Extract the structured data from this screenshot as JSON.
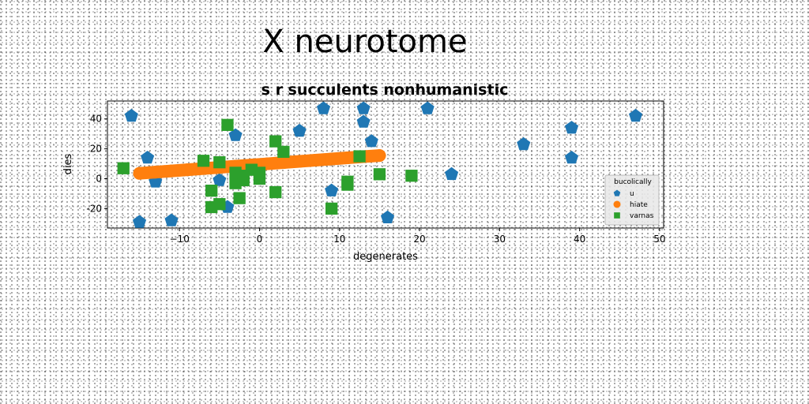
{
  "figure": {
    "suptitle": "X neurotome"
  },
  "chart_data": {
    "type": "scatter",
    "title": "s r succulents nonhumanistic",
    "xlabel": "degenerates",
    "ylabel": "dies",
    "xlim": [
      -19,
      50.5
    ],
    "ylim": [
      -33,
      52
    ],
    "xticks": [
      -10,
      0,
      10,
      20,
      30,
      40,
      50
    ],
    "yticks": [
      -20,
      0,
      20,
      40
    ],
    "grid": false,
    "legend": {
      "title": "bucolically",
      "placement": "lower-right"
    },
    "series": [
      {
        "name": "u",
        "marker": "pentagon",
        "color": "#1f77b4",
        "x": [
          -16,
          -15,
          -14,
          -13,
          -11,
          -5,
          -4,
          -3,
          5,
          8,
          9,
          13,
          13,
          14,
          16,
          21,
          24,
          33,
          39,
          39,
          47
        ],
        "y": [
          42,
          -29,
          14,
          -2,
          -28,
          -1,
          -19,
          29,
          32,
          47,
          -8,
          47,
          38,
          25,
          -26,
          47,
          3,
          23,
          34,
          14,
          42
        ]
      },
      {
        "name": "hiate",
        "marker": "circle",
        "color": "#ff7f0e",
        "x": [
          -15,
          -13,
          -11,
          -9,
          -7,
          -5,
          -3,
          -1,
          1,
          3,
          5,
          7,
          9,
          11,
          13,
          15
        ],
        "y": [
          3.6,
          4.4,
          5.2,
          6,
          6.8,
          7.6,
          8.4,
          9.2,
          10,
          10.8,
          11.6,
          12.4,
          13.2,
          14,
          14.8,
          15.5
        ]
      },
      {
        "name": "varnas",
        "marker": "square",
        "color": "#2ca02c",
        "x": [
          -17,
          -7,
          -6,
          -6,
          -5,
          -5,
          -4,
          -3,
          -3,
          -2.5,
          -2,
          -2,
          -1,
          0,
          0,
          2,
          2,
          3,
          9,
          11,
          11,
          12.5,
          15,
          19
        ],
        "y": [
          7,
          12,
          -8,
          -19,
          11,
          -17,
          36,
          -3,
          4,
          -13,
          2,
          -1,
          6,
          0,
          4,
          -9,
          25,
          18,
          -20,
          -2,
          -4,
          15,
          3,
          2
        ]
      }
    ]
  }
}
